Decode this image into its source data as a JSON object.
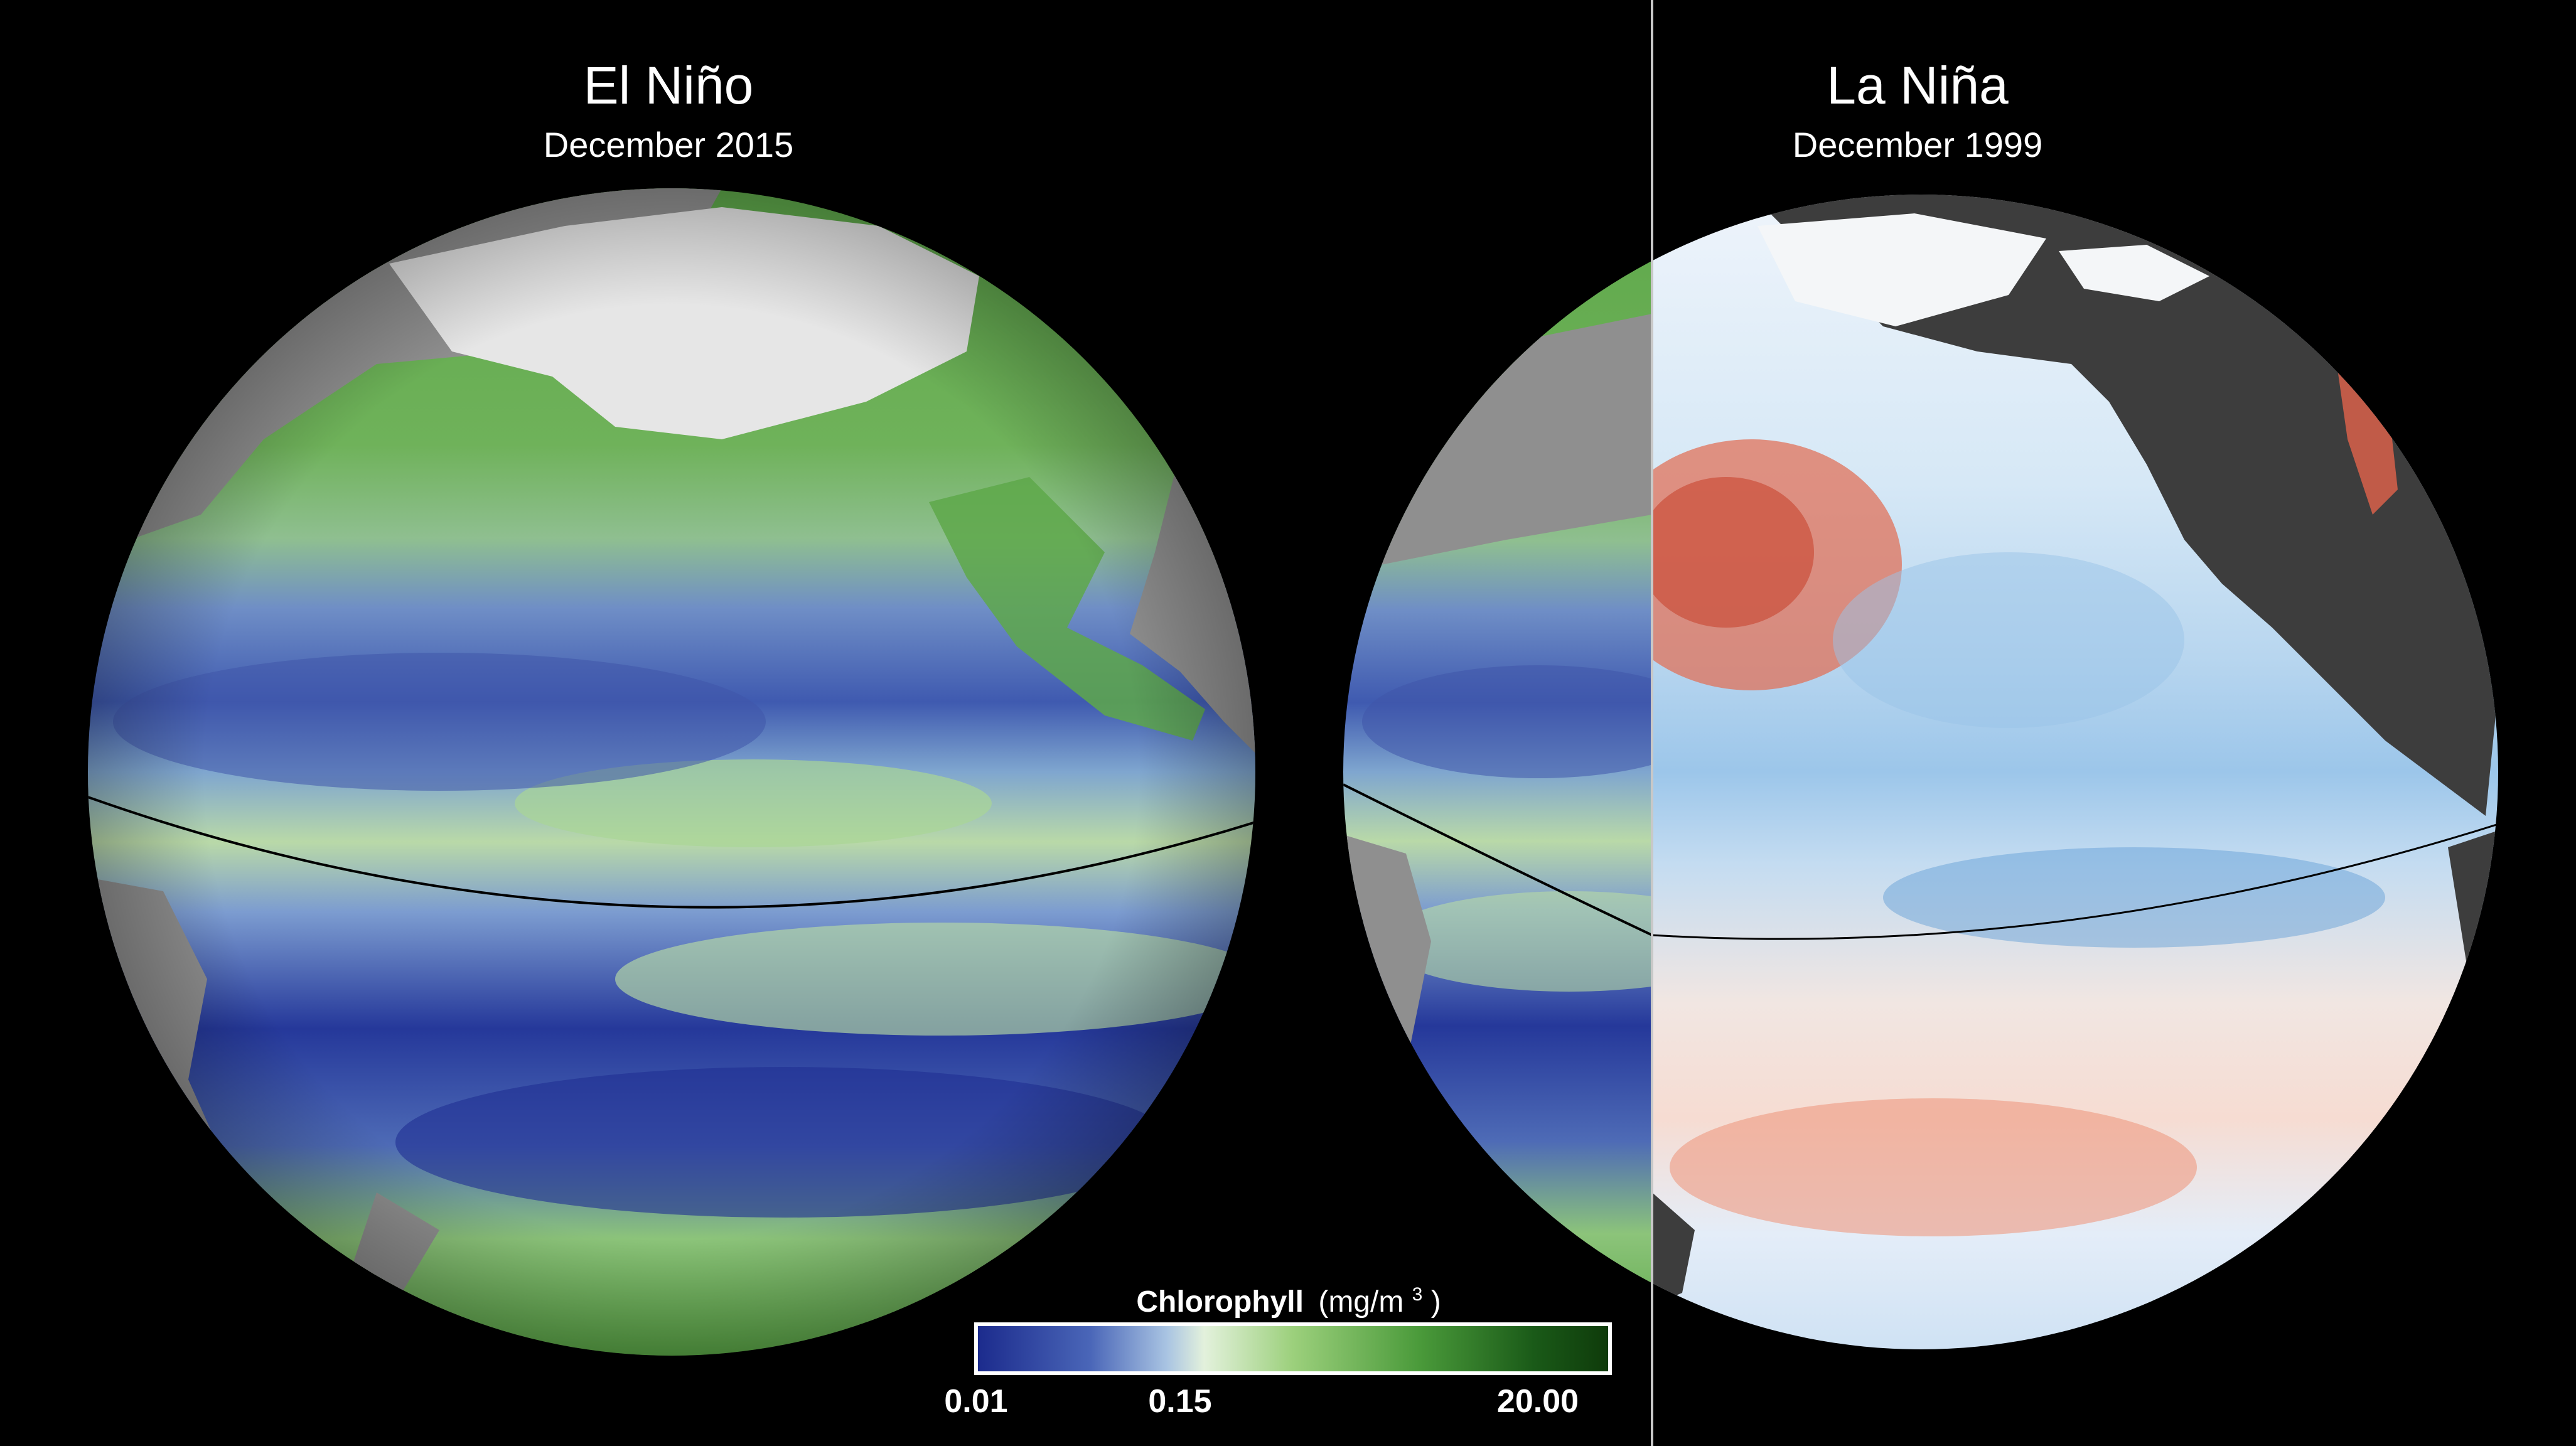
{
  "panels": [
    {
      "title": "El Niño",
      "subtitle": "December 2015"
    },
    {
      "title": "La Niña",
      "subtitle": "December 1999"
    }
  ],
  "legend": {
    "title_bold": "Chlorophyll",
    "title_unit": "(mg/m",
    "title_unit_sup": "3",
    "title_unit_close": ")",
    "min_label": "0.01",
    "mid_label": "0.15",
    "max_label": "20.00",
    "colors": [
      "#1b2a8c",
      "#4a66b8",
      "#a8c3e2",
      "#e3f1dc",
      "#9cd07c",
      "#4a9a3a",
      "#1a5a18",
      "#0e3a0a"
    ]
  },
  "colors": {
    "background": "#000000",
    "land_gray": "#8f8f8f",
    "land_dark": "#3d3d3d",
    "ice": "#e6e6e6",
    "divider": "#c8c8c8",
    "equator": "#000000"
  }
}
